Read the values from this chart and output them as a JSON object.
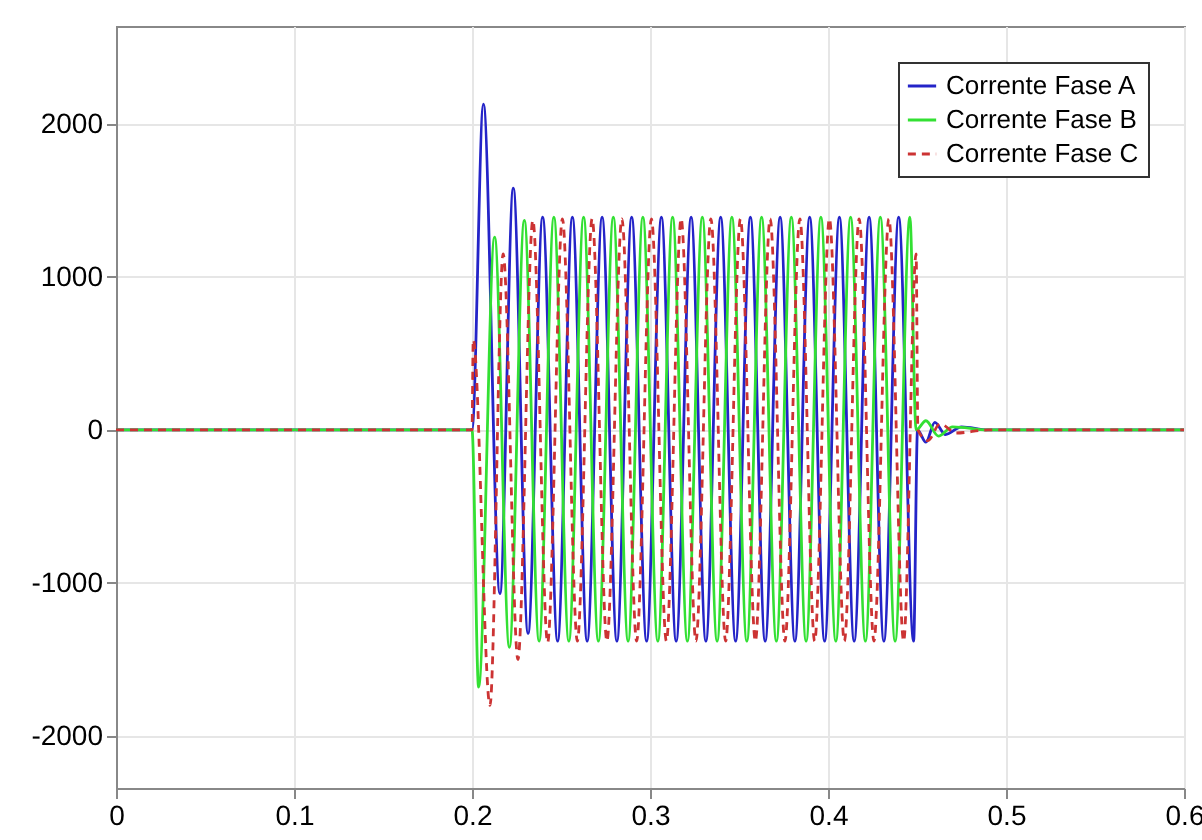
{
  "chart_data": {
    "type": "line",
    "xlim": [
      0,
      0.6
    ],
    "xticks": [
      0,
      0.1,
      0.2,
      0.3,
      0.4,
      0.5,
      0.6
    ],
    "ylim": [
      -2340,
      2640
    ],
    "yticks": [
      -2000,
      -1000,
      0,
      1000,
      2000
    ],
    "grid": true,
    "legend": "top right",
    "series": [
      {
        "name": "Corrente Fase A",
        "color": "#2424c8",
        "line_style": "solid",
        "x": [
          0,
          0.2,
          0.2064,
          0.2157,
          0.2232,
          0.2315,
          0.2397,
          0.2481,
          0.2564,
          0.2647,
          0.2731,
          0.2814,
          0.2897,
          0.2981,
          0.3064,
          0.3147,
          0.3231,
          0.3314,
          0.3397,
          0.3481,
          0.3564,
          0.3647,
          0.3731,
          0.3814,
          0.3897,
          0.3981,
          0.4064,
          0.4147,
          0.4231,
          0.4314,
          0.4397,
          0.4481,
          0.4503,
          0.455,
          0.46,
          0.466,
          0.475,
          0.49,
          0.6
        ],
        "values": [
          0,
          0,
          2130,
          -1070,
          1580,
          -1330,
          1390,
          -1380,
          1390,
          -1380,
          1390,
          -1380,
          1390,
          -1380,
          1390,
          -1380,
          1390,
          -1380,
          1390,
          -1380,
          1390,
          -1380,
          1390,
          -1380,
          1390,
          -1380,
          1390,
          -1380,
          1390,
          -1380,
          1390,
          -1380,
          0,
          -80,
          50,
          -30,
          20,
          0,
          0
        ]
      },
      {
        "name": "Corrente Fase B",
        "color": "#33e033",
        "line_style": "solid",
        "x": [
          0,
          0.2,
          0.2037,
          0.2127,
          0.221,
          0.2294,
          0.2377,
          0.246,
          0.2544,
          0.2627,
          0.271,
          0.2794,
          0.2877,
          0.296,
          0.3044,
          0.3127,
          0.321,
          0.3294,
          0.3377,
          0.346,
          0.3544,
          0.3627,
          0.371,
          0.3794,
          0.3877,
          0.396,
          0.4044,
          0.4127,
          0.421,
          0.4294,
          0.4377,
          0.446,
          0.4495,
          0.455,
          0.462,
          0.47,
          0.49,
          0.6
        ],
        "values": [
          0,
          0,
          -1680,
          1260,
          -1420,
          1370,
          -1380,
          1390,
          -1380,
          1390,
          -1380,
          1390,
          -1380,
          1390,
          -1380,
          1390,
          -1380,
          1390,
          -1380,
          1390,
          -1380,
          1390,
          -1380,
          1390,
          -1380,
          1390,
          -1380,
          1390,
          -1380,
          1390,
          -1380,
          1390,
          0,
          60,
          -40,
          20,
          0,
          0
        ]
      },
      {
        "name": "Corrente Fase C",
        "color": "#cc3333",
        "line_style": "dashed",
        "x": [
          0,
          0.2,
          0.2007,
          0.2101,
          0.2175,
          0.2258,
          0.2342,
          0.2425,
          0.2508,
          0.2592,
          0.2675,
          0.2758,
          0.2842,
          0.2925,
          0.3008,
          0.3092,
          0.3175,
          0.3258,
          0.3342,
          0.3425,
          0.3508,
          0.3592,
          0.3675,
          0.3758,
          0.3842,
          0.3925,
          0.4008,
          0.4092,
          0.4175,
          0.4258,
          0.4342,
          0.4425,
          0.4495,
          0.4505,
          0.456,
          0.463,
          0.472,
          0.49,
          0.6
        ],
        "values": [
          0,
          0,
          590,
          -1800,
          1150,
          -1500,
          1370,
          -1390,
          1380,
          -1380,
          1380,
          -1380,
          1380,
          -1380,
          1380,
          -1380,
          1380,
          -1380,
          1380,
          -1380,
          1380,
          -1380,
          1380,
          -1380,
          1380,
          -1380,
          1380,
          -1380,
          1380,
          -1380,
          1380,
          -1380,
          1150,
          0,
          -70,
          40,
          -20,
          0,
          0
        ]
      }
    ]
  }
}
